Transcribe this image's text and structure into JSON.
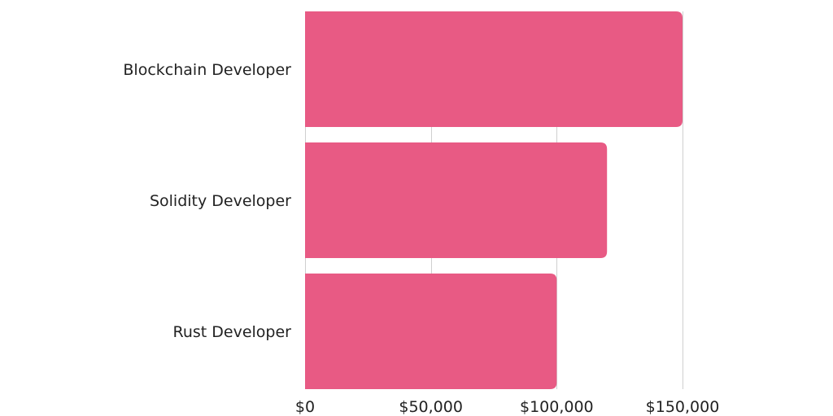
{
  "chart_data": {
    "type": "bar",
    "orientation": "horizontal",
    "categories": [
      "Blockchain Developer",
      "Solidity Developer",
      "Rust Developer"
    ],
    "values": [
      150000,
      120000,
      100000
    ],
    "x_ticks": [
      0,
      50000,
      100000,
      150000
    ],
    "x_tick_labels": [
      "$0",
      "$50,000",
      "$100,000",
      "$150,000"
    ],
    "xlim": [
      0,
      150000
    ],
    "grid": true,
    "legend": "none",
    "bar_color": "#e85a84",
    "grid_color": "#cfcfcf"
  }
}
